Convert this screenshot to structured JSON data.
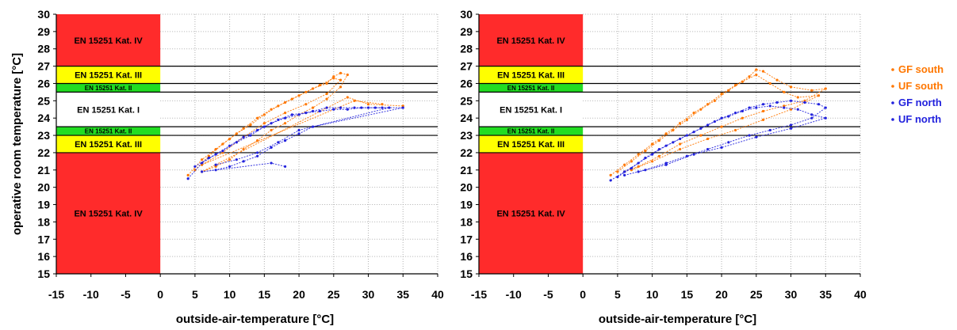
{
  "chart_data": [
    {
      "type": "scatter",
      "panel": "left",
      "xlabel": "outside-air-temperature [°C]",
      "ylabel": "operative room temperature [°C]",
      "xlim": [
        -15,
        40
      ],
      "ylim": [
        15,
        30
      ],
      "xticks": [
        -15,
        -10,
        -5,
        0,
        5,
        10,
        15,
        20,
        25,
        30,
        35,
        40
      ],
      "yticks": [
        15,
        16,
        17,
        18,
        19,
        20,
        21,
        22,
        23,
        24,
        25,
        26,
        27,
        28,
        29,
        30
      ],
      "grid": true,
      "comfort_categories": [
        {
          "label": "EN 15251 Kat. IV",
          "y_from": 27,
          "y_to": 30,
          "color": "#ff2b2b"
        },
        {
          "label": "EN 15251 Kat. III",
          "y_from": 26,
          "y_to": 27,
          "color": "#ffff00"
        },
        {
          "label": "EN 15251 Kat. II",
          "y_from": 25.5,
          "y_to": 26,
          "color": "#22dd22"
        },
        {
          "label": "EN 15251 Kat. I",
          "y_from": 23.5,
          "y_to": 25.5,
          "color": "#ffffff"
        },
        {
          "label": "EN 15251 Kat. II",
          "y_from": 23,
          "y_to": 23.5,
          "color": "#22dd22"
        },
        {
          "label": "EN 15251 Kat. III",
          "y_from": 22,
          "y_to": 23,
          "color": "#ffff00"
        },
        {
          "label": "EN 15251 Kat. IV",
          "y_from": 15,
          "y_to": 22,
          "color": "#ff2b2b"
        }
      ],
      "category_x_range": [
        -15,
        0
      ],
      "boundary_lines_y": [
        22,
        23,
        23.5,
        25.5,
        26,
        27
      ],
      "series": [
        {
          "name": "GF south",
          "color": "#ff7700",
          "points": [
            [
              4,
              20.7
            ],
            [
              6,
              21.6
            ],
            [
              8,
              22.2
            ],
            [
              10,
              22.8
            ],
            [
              12,
              23.4
            ],
            [
              14,
              24.0
            ],
            [
              16,
              24.5
            ],
            [
              18,
              24.9
            ],
            [
              20,
              25.3
            ],
            [
              22,
              25.7
            ],
            [
              24,
              26.0
            ],
            [
              25,
              26.4
            ],
            [
              26,
              26.6
            ],
            [
              27,
              26.5
            ],
            [
              26,
              25.8
            ],
            [
              24,
              25.1
            ],
            [
              22,
              24.6
            ],
            [
              20,
              24.2
            ],
            [
              18,
              23.7
            ],
            [
              16,
              23.3
            ],
            [
              14,
              22.7
            ],
            [
              12,
              22.2
            ],
            [
              10,
              21.6
            ],
            [
              8,
              21.2
            ],
            [
              6,
              20.9
            ],
            [
              27,
              25.2
            ],
            [
              30,
              24.8
            ],
            [
              35,
              24.7
            ]
          ]
        },
        {
          "name": "UF south",
          "color": "#ff7700",
          "points": [
            [
              5,
              21.0
            ],
            [
              7,
              21.8
            ],
            [
              9,
              22.5
            ],
            [
              11,
              23.1
            ],
            [
              13,
              23.6
            ],
            [
              15,
              24.2
            ],
            [
              17,
              24.7
            ],
            [
              19,
              25.1
            ],
            [
              21,
              25.5
            ],
            [
              23,
              25.9
            ],
            [
              25,
              26.3
            ],
            [
              26,
              26.2
            ],
            [
              24,
              25.4
            ],
            [
              21,
              24.8
            ],
            [
              18,
              24.3
            ],
            [
              15,
              23.7
            ],
            [
              12,
              22.9
            ],
            [
              9,
              22.0
            ],
            [
              6,
              21.3
            ],
            [
              28,
              25.0
            ],
            [
              32,
              24.8
            ]
          ]
        },
        {
          "name": "GF north",
          "color": "#2222dd",
          "points": [
            [
              4,
              20.5
            ],
            [
              6,
              21.4
            ],
            [
              8,
              21.9
            ],
            [
              10,
              22.4
            ],
            [
              12,
              22.9
            ],
            [
              14,
              23.3
            ],
            [
              16,
              23.7
            ],
            [
              18,
              24.0
            ],
            [
              20,
              24.2
            ],
            [
              22,
              24.4
            ],
            [
              24,
              24.6
            ],
            [
              26,
              24.6
            ],
            [
              28,
              24.6
            ],
            [
              30,
              24.6
            ],
            [
              32,
              24.6
            ],
            [
              35,
              24.6
            ],
            [
              22,
              23.5
            ],
            [
              20,
              23.1
            ],
            [
              18,
              22.7
            ],
            [
              16,
              22.3
            ],
            [
              14,
              21.8
            ],
            [
              12,
              21.5
            ],
            [
              10,
              21.2
            ],
            [
              8,
              21.0
            ],
            [
              6,
              20.9
            ],
            [
              16,
              21.4
            ],
            [
              18,
              21.2
            ]
          ]
        },
        {
          "name": "UF north",
          "color": "#2222dd",
          "points": [
            [
              5,
              21.2
            ],
            [
              7,
              21.7
            ],
            [
              9,
              22.1
            ],
            [
              11,
              22.6
            ],
            [
              13,
              23.0
            ],
            [
              15,
              23.5
            ],
            [
              17,
              23.9
            ],
            [
              19,
              24.2
            ],
            [
              21,
              24.3
            ],
            [
              23,
              24.4
            ],
            [
              25,
              24.5
            ],
            [
              27,
              24.5
            ],
            [
              29,
              24.6
            ],
            [
              31,
              24.6
            ],
            [
              33,
              24.6
            ],
            [
              20,
              23.3
            ],
            [
              17,
              22.6
            ],
            [
              14,
              22.0
            ],
            [
              11,
              21.6
            ],
            [
              8,
              21.3
            ]
          ]
        }
      ]
    },
    {
      "type": "scatter",
      "panel": "right",
      "xlabel": "outside-air-temperature [°C]",
      "ylabel": "",
      "xlim": [
        -15,
        40
      ],
      "ylim": [
        15,
        30
      ],
      "xticks": [
        -15,
        -10,
        -5,
        0,
        5,
        10,
        15,
        20,
        25,
        30,
        35,
        40
      ],
      "yticks": [
        15,
        16,
        17,
        18,
        19,
        20,
        21,
        22,
        23,
        24,
        25,
        26,
        27,
        28,
        29,
        30
      ],
      "grid": true,
      "legend": "right",
      "comfort_categories": [
        {
          "label": "EN 15251 Kat. IV",
          "y_from": 27,
          "y_to": 30,
          "color": "#ff2b2b"
        },
        {
          "label": "EN 15251 Kat. III",
          "y_from": 26,
          "y_to": 27,
          "color": "#ffff00"
        },
        {
          "label": "EN 15251 Kat. II",
          "y_from": 25.5,
          "y_to": 26,
          "color": "#22dd22"
        },
        {
          "label": "EN 15251 Kat. I",
          "y_from": 23.5,
          "y_to": 25.5,
          "color": "#ffffff"
        },
        {
          "label": "EN 15251 Kat. II",
          "y_from": 23,
          "y_to": 23.5,
          "color": "#22dd22"
        },
        {
          "label": "EN 15251 Kat. III",
          "y_from": 22,
          "y_to": 23,
          "color": "#ffff00"
        },
        {
          "label": "EN 15251 Kat. IV",
          "y_from": 15,
          "y_to": 22,
          "color": "#ff2b2b"
        }
      ],
      "category_x_range": [
        -15,
        0
      ],
      "boundary_lines_y": [
        22,
        23,
        23.5,
        25.5,
        26,
        27
      ],
      "series": [
        {
          "name": "GF south",
          "color": "#ff7700",
          "points": [
            [
              4,
              20.7
            ],
            [
              6,
              21.3
            ],
            [
              8,
              21.9
            ],
            [
              10,
              22.5
            ],
            [
              12,
              23.1
            ],
            [
              14,
              23.7
            ],
            [
              16,
              24.3
            ],
            [
              18,
              24.8
            ],
            [
              20,
              25.4
            ],
            [
              22,
              25.9
            ],
            [
              24,
              26.4
            ],
            [
              25,
              26.8
            ],
            [
              26,
              26.7
            ],
            [
              28,
              26.2
            ],
            [
              30,
              25.8
            ],
            [
              33,
              25.6
            ],
            [
              35,
              25.7
            ],
            [
              32,
              25.0
            ],
            [
              29,
              24.7
            ],
            [
              26,
              24.4
            ],
            [
              23,
              24.0
            ],
            [
              20,
              23.5
            ],
            [
              17,
              23.0
            ],
            [
              14,
              22.5
            ],
            [
              11,
              21.8
            ],
            [
              8,
              21.2
            ],
            [
              6,
              20.9
            ]
          ]
        },
        {
          "name": "UF south",
          "color": "#ff7700",
          "points": [
            [
              5,
              20.9
            ],
            [
              7,
              21.5
            ],
            [
              9,
              22.1
            ],
            [
              11,
              22.7
            ],
            [
              13,
              23.3
            ],
            [
              15,
              23.9
            ],
            [
              17,
              24.5
            ],
            [
              19,
              25.0
            ],
            [
              21,
              25.6
            ],
            [
              23,
              26.1
            ],
            [
              25,
              26.5
            ],
            [
              27,
              26.0
            ],
            [
              29,
              25.5
            ],
            [
              31,
              25.2
            ],
            [
              34,
              25.3
            ],
            [
              30,
              24.5
            ],
            [
              26,
              23.9
            ],
            [
              22,
              23.3
            ],
            [
              18,
              22.8
            ],
            [
              14,
              22.2
            ],
            [
              10,
              21.5
            ],
            [
              7,
              21.0
            ]
          ]
        },
        {
          "name": "GF north",
          "color": "#2222dd",
          "points": [
            [
              4,
              20.4
            ],
            [
              6,
              20.9
            ],
            [
              8,
              21.4
            ],
            [
              10,
              21.9
            ],
            [
              12,
              22.4
            ],
            [
              14,
              22.8
            ],
            [
              16,
              23.2
            ],
            [
              18,
              23.6
            ],
            [
              20,
              24.0
            ],
            [
              22,
              24.3
            ],
            [
              24,
              24.6
            ],
            [
              26,
              24.8
            ],
            [
              28,
              24.9
            ],
            [
              30,
              25.0
            ],
            [
              32,
              24.9
            ],
            [
              34,
              24.8
            ],
            [
              35,
              24.6
            ],
            [
              33,
              24.0
            ],
            [
              30,
              23.6
            ],
            [
              27,
              23.3
            ],
            [
              24,
              23.0
            ],
            [
              21,
              22.6
            ],
            [
              18,
              22.2
            ],
            [
              15,
              21.8
            ],
            [
              12,
              21.4
            ],
            [
              9,
              21.0
            ],
            [
              6,
              20.7
            ]
          ]
        },
        {
          "name": "UF north",
          "color": "#2222dd",
          "points": [
            [
              5,
              20.6
            ],
            [
              7,
              21.1
            ],
            [
              9,
              21.7
            ],
            [
              11,
              22.2
            ],
            [
              13,
              22.6
            ],
            [
              15,
              23.0
            ],
            [
              17,
              23.4
            ],
            [
              19,
              23.8
            ],
            [
              21,
              24.1
            ],
            [
              23,
              24.4
            ],
            [
              25,
              24.6
            ],
            [
              27,
              24.7
            ],
            [
              29,
              24.6
            ],
            [
              31,
              24.5
            ],
            [
              33,
              24.2
            ],
            [
              35,
              24.0
            ],
            [
              30,
              23.4
            ],
            [
              25,
              22.9
            ],
            [
              20,
              22.3
            ],
            [
              16,
              21.9
            ],
            [
              12,
              21.3
            ],
            [
              8,
              20.9
            ]
          ]
        }
      ]
    }
  ],
  "legend": {
    "items": [
      {
        "label": "GF south",
        "color": "#ff7700"
      },
      {
        "label": "UF south",
        "color": "#ff7700"
      },
      {
        "label": "GF north",
        "color": "#2222dd"
      },
      {
        "label": "UF north",
        "color": "#2222dd"
      }
    ]
  }
}
